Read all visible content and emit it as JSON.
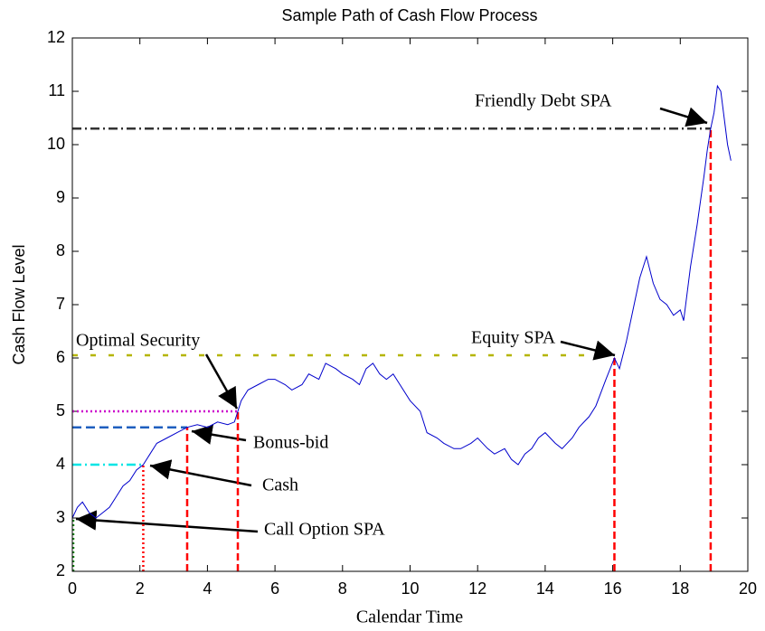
{
  "chart_data": {
    "type": "line",
    "title": "Sample Path of Cash Flow Process",
    "x_label": "Calendar Time",
    "y_label": "Cash Flow Level",
    "xlim": [
      0,
      20
    ],
    "ylim": [
      2,
      12
    ],
    "xticks": [
      0,
      2,
      4,
      6,
      8,
      10,
      12,
      14,
      16,
      18,
      20
    ],
    "yticks": [
      2,
      3,
      4,
      5,
      6,
      7,
      8,
      9,
      10,
      11,
      12
    ],
    "x": [
      0,
      0.15,
      0.3,
      0.5,
      0.7,
      0.9,
      1.1,
      1.3,
      1.5,
      1.7,
      1.9,
      2.1,
      2.3,
      2.5,
      2.8,
      3.1,
      3.4,
      3.7,
      4.0,
      4.3,
      4.6,
      4.8,
      4.9,
      5.0,
      5.2,
      5.5,
      5.8,
      6.0,
      6.3,
      6.5,
      6.8,
      7.0,
      7.3,
      7.5,
      7.8,
      8.0,
      8.3,
      8.5,
      8.7,
      8.9,
      9.1,
      9.3,
      9.5,
      9.7,
      10.0,
      10.3,
      10.5,
      10.8,
      11.0,
      11.3,
      11.5,
      11.8,
      12.0,
      12.3,
      12.5,
      12.8,
      13.0,
      13.2,
      13.4,
      13.6,
      13.8,
      14.0,
      14.3,
      14.5,
      14.8,
      15.0,
      15.3,
      15.5,
      15.8,
      16.05,
      16.2,
      16.4,
      16.6,
      16.8,
      17.0,
      17.2,
      17.4,
      17.6,
      17.8,
      18.0,
      18.1,
      18.3,
      18.5,
      18.7,
      18.8,
      18.9,
      19.0,
      19.1,
      19.2,
      19.3,
      19.4,
      19.5
    ],
    "series": [
      {
        "color": "#0000cc",
        "values": [
          3.0,
          3.2,
          3.3,
          3.1,
          3.0,
          3.1,
          3.2,
          3.4,
          3.6,
          3.7,
          3.9,
          4.0,
          4.2,
          4.4,
          4.5,
          4.6,
          4.7,
          4.75,
          4.7,
          4.8,
          4.75,
          4.8,
          5.0,
          5.2,
          5.4,
          5.5,
          5.6,
          5.6,
          5.5,
          5.4,
          5.5,
          5.7,
          5.6,
          5.9,
          5.8,
          5.7,
          5.6,
          5.5,
          5.8,
          5.9,
          5.7,
          5.6,
          5.7,
          5.5,
          5.2,
          5.0,
          4.6,
          4.5,
          4.4,
          4.3,
          4.3,
          4.4,
          4.5,
          4.3,
          4.2,
          4.3,
          4.1,
          4.0,
          4.2,
          4.3,
          4.5,
          4.6,
          4.4,
          4.3,
          4.5,
          4.7,
          4.9,
          5.1,
          5.6,
          6.0,
          5.8,
          6.3,
          6.9,
          7.5,
          7.9,
          7.4,
          7.1,
          7.0,
          6.8,
          6.9,
          6.7,
          7.7,
          8.5,
          9.4,
          9.9,
          10.3,
          10.6,
          11.1,
          11.0,
          10.5,
          10.0,
          9.7
        ]
      }
    ],
    "thresholds": [
      {
        "label": "Call Option SPA",
        "x": 0,
        "y": 3.0,
        "color": "#008000",
        "style": "dotted"
      },
      {
        "label": "Cash",
        "x": 2.1,
        "y": 4.0,
        "color": "#00e5e5",
        "style": "dashdot"
      },
      {
        "label": "Bonus-bid",
        "x": 3.4,
        "y": 4.7,
        "color": "#1f5fbf",
        "style": "dashed"
      },
      {
        "label": "Optimal Security",
        "x": 4.9,
        "y": 5.0,
        "color": "#cc00cc",
        "style": "dotted"
      },
      {
        "label": "Equity SPA",
        "x": 16.05,
        "y": 6.05,
        "color": "#b5b500",
        "style": "sparse"
      },
      {
        "label": "Friendly Debt SPA",
        "x": 18.9,
        "y": 10.3,
        "color": "#333333",
        "style": "dashdot"
      }
    ]
  }
}
